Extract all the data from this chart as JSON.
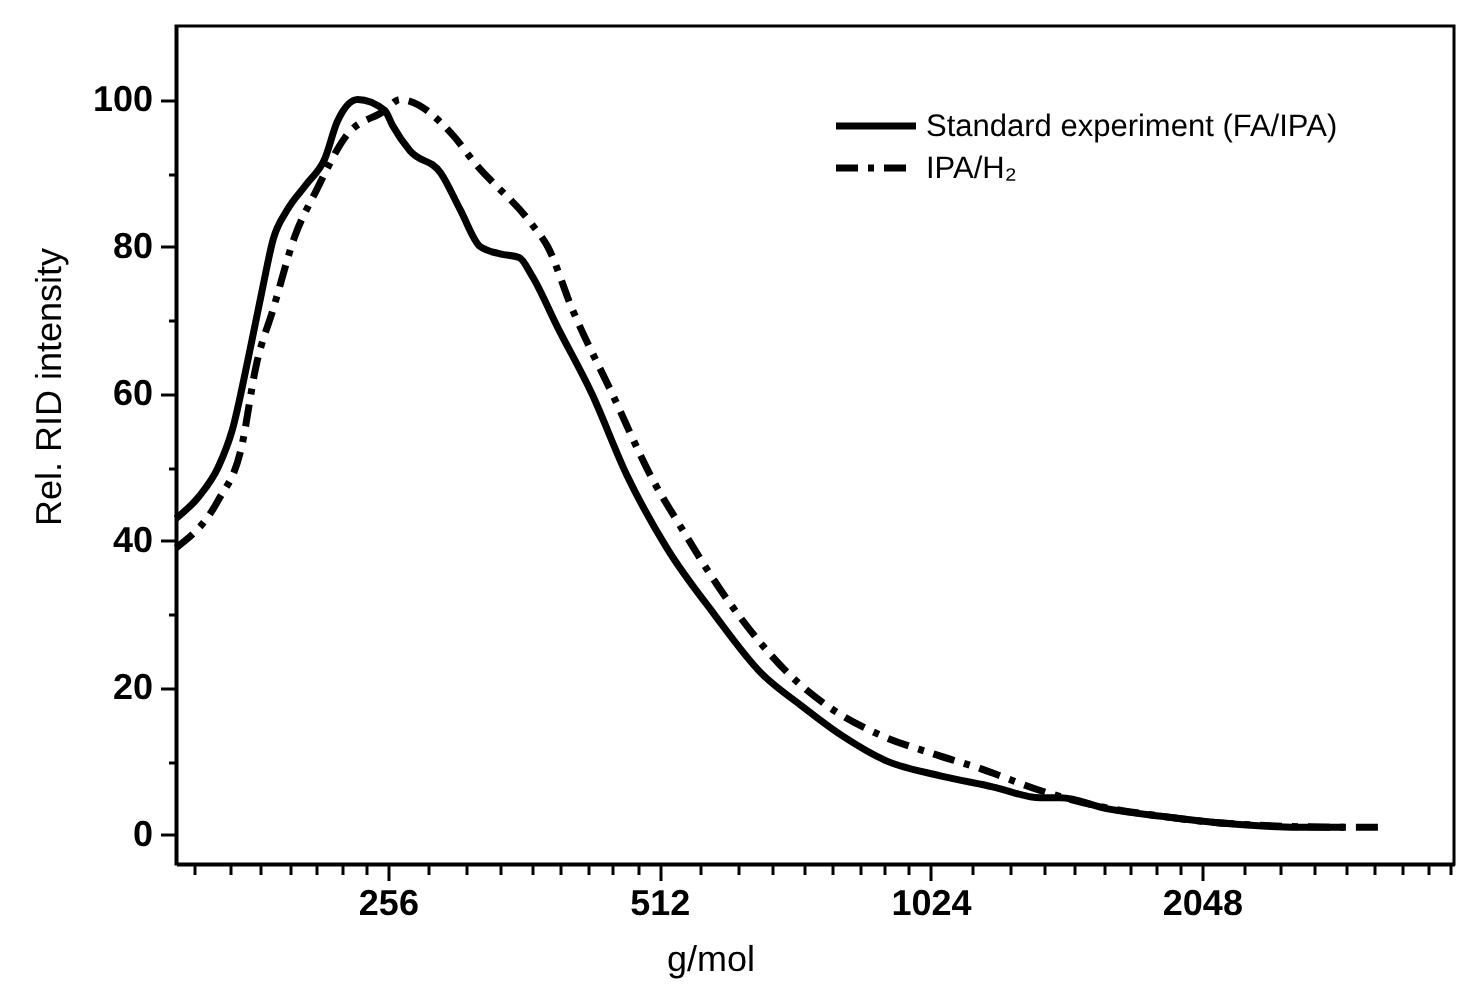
{
  "chart_data": {
    "type": "line",
    "xlabel": "g/mol",
    "ylabel": "Rel. RID intensity",
    "log": "x",
    "grid": false,
    "legend": "top right",
    "xlim": [
      149,
      3900
    ],
    "xticks": [
      {
        "value": 156,
        "label": null
      },
      {
        "value": 171,
        "label": null
      },
      {
        "value": 185,
        "label": null
      },
      {
        "value": 199,
        "label": null
      },
      {
        "value": 213,
        "label": null
      },
      {
        "value": 228,
        "label": null
      },
      {
        "value": 242,
        "label": null
      },
      256,
      {
        "value": 284,
        "label": null
      },
      {
        "value": 313,
        "label": null
      },
      {
        "value": 341,
        "label": null
      },
      {
        "value": 370,
        "label": null
      },
      {
        "value": 398,
        "label": null
      },
      {
        "value": 427,
        "label": null
      },
      {
        "value": 455,
        "label": null
      },
      {
        "value": 484,
        "label": null
      },
      512,
      {
        "value": 569,
        "label": null
      },
      {
        "value": 626,
        "label": null
      },
      {
        "value": 683,
        "label": null
      },
      {
        "value": 740,
        "label": null
      },
      {
        "value": 796,
        "label": null
      },
      {
        "value": 853,
        "label": null
      },
      {
        "value": 910,
        "label": null
      },
      {
        "value": 967,
        "label": null
      },
      1024,
      {
        "value": 1138,
        "label": null
      },
      {
        "value": 1252,
        "label": null
      },
      {
        "value": 1365,
        "label": null
      },
      {
        "value": 1479,
        "label": null
      },
      {
        "value": 1593,
        "label": null
      },
      {
        "value": 1707,
        "label": null
      },
      {
        "value": 1820,
        "label": null
      },
      {
        "value": 1934,
        "label": null
      },
      2048,
      {
        "value": 2276,
        "label": null
      },
      {
        "value": 2503,
        "label": null
      },
      {
        "value": 2731,
        "label": null
      },
      {
        "value": 2958,
        "label": null
      },
      {
        "value": 3186,
        "label": null
      },
      {
        "value": 3413,
        "label": null
      },
      {
        "value": 3641,
        "label": null
      },
      {
        "value": 3868,
        "label": null
      }
    ],
    "ylim": [
      -4,
      110
    ],
    "yticks": [
      0,
      {
        "value": 10,
        "label": null
      },
      20,
      {
        "value": 30,
        "label": null
      },
      40,
      {
        "value": 50,
        "label": null
      },
      60,
      {
        "value": 70,
        "label": null
      },
      80,
      {
        "value": 90,
        "label": null
      },
      100
    ],
    "series": [
      {
        "name": "Standard experiment (FA/IPA)",
        "color": "#000000",
        "line_style": "solid",
        "x": [
          149,
          158,
          166,
          172,
          179,
          186,
          191,
          198,
          208,
          218,
          225,
          237,
          254,
          259,
          271,
          293,
          308,
          324,
          341,
          358,
          370,
          395,
          431,
          471,
          522,
          589,
          664,
          737,
          816,
          916,
          1050,
          1200,
          1355,
          1427,
          1610,
          1847,
          2185,
          2616,
          2948
        ],
        "values": [
          43,
          46,
          50,
          55,
          64.5,
          74.5,
          81,
          85,
          88.5,
          92,
          97,
          100,
          98.5,
          96.5,
          93,
          90,
          85,
          80,
          79,
          78.5,
          76,
          69,
          60,
          49,
          39,
          30,
          22,
          17.5,
          13.5,
          10,
          8,
          6.5,
          5,
          5,
          3.5,
          2.5,
          1.5,
          1,
          1
        ]
      },
      {
        "name": "IPA/H₂",
        "color": "#000000",
        "line_style": "dashdot",
        "x": [
          149,
          166,
          176,
          183,
          191,
          202,
          213,
          230,
          254,
          264,
          303,
          319,
          370,
          385,
          410,
          454,
          505,
          537,
          609,
          664,
          711,
          787,
          902,
          1030,
          1161,
          1355,
          1555,
          1847,
          2201,
          2948,
          3231
        ],
        "values": [
          39,
          45.5,
          52.5,
          64,
          71.5,
          81.5,
          87.5,
          95,
          98.5,
          100,
          95,
          91.5,
          83,
          80,
          71.5,
          60,
          48,
          42.5,
          32,
          26,
          22,
          17.5,
          13.5,
          11,
          9,
          6,
          4,
          2.5,
          1.5,
          1,
          1
        ]
      }
    ]
  }
}
